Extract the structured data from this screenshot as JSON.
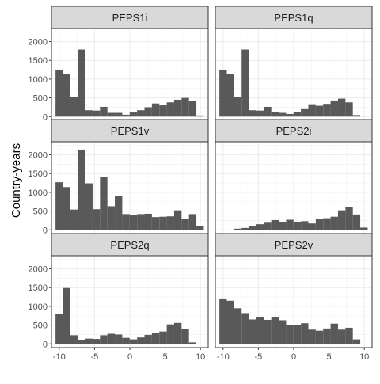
{
  "chart_data": {
    "type": "bar",
    "ylabel": "Country-years",
    "xlabel": "",
    "xlim": [
      -11.1,
      11.1
    ],
    "ylim": [
      -100,
      2350
    ],
    "x_ticks": [
      -10,
      -5,
      0,
      5,
      10
    ],
    "y_ticks": [
      0,
      500,
      1000,
      1500,
      2000
    ],
    "bin_width": 1.05,
    "first_bin_center": -10,
    "grid": true,
    "panels": [
      {
        "title": "PEPS1i",
        "values": [
          1250,
          1130,
          530,
          1790,
          170,
          160,
          260,
          100,
          100,
          50,
          110,
          170,
          250,
          350,
          300,
          380,
          450,
          500,
          410,
          30
        ]
      },
      {
        "title": "PEPS1q",
        "values": [
          1250,
          1130,
          530,
          1790,
          170,
          160,
          260,
          120,
          100,
          70,
          130,
          200,
          330,
          290,
          340,
          430,
          480,
          380,
          40,
          0
        ]
      },
      {
        "title": "PEPS1v",
        "values": [
          1270,
          1140,
          540,
          2140,
          1240,
          550,
          1400,
          630,
          900,
          420,
          400,
          420,
          430,
          340,
          350,
          360,
          520,
          300,
          420,
          100
        ]
      },
      {
        "title": "PEPS2i",
        "values": [
          0,
          0,
          30,
          50,
          110,
          150,
          190,
          260,
          200,
          270,
          210,
          230,
          170,
          280,
          310,
          350,
          520,
          610,
          410,
          60
        ]
      },
      {
        "title": "PEPS2q",
        "values": [
          790,
          1490,
          230,
          90,
          140,
          130,
          230,
          270,
          250,
          160,
          120,
          170,
          240,
          300,
          330,
          520,
          560,
          400,
          40,
          0
        ]
      },
      {
        "title": "PEPS2v",
        "values": [
          1190,
          1150,
          950,
          820,
          650,
          720,
          640,
          710,
          630,
          510,
          510,
          550,
          380,
          350,
          410,
          540,
          380,
          430,
          120,
          0
        ]
      }
    ]
  }
}
